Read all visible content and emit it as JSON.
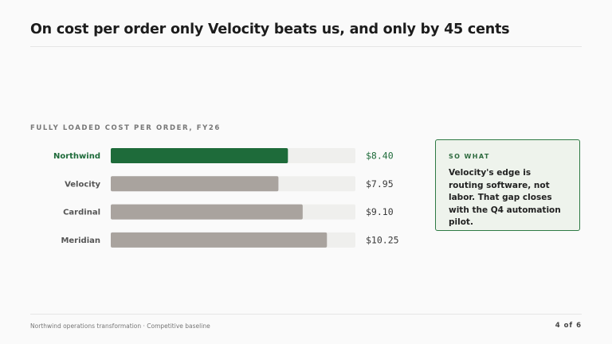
{
  "header": {
    "title": "On cost per order only Velocity beats us, and only by 45 cents"
  },
  "chart_data": {
    "type": "bar",
    "orientation": "horizontal",
    "title": "FULLY LOADED COST PER ORDER, FY26",
    "categories": [
      "Northwind",
      "Velocity",
      "Cardinal",
      "Meridian"
    ],
    "values": [
      8.4,
      7.95,
      9.1,
      10.25
    ],
    "value_labels": [
      "$8.40",
      "$7.95",
      "$9.10",
      "$10.25"
    ],
    "highlight": "Northwind",
    "xlim": [
      0,
      11.6
    ],
    "grid": false,
    "colors": {
      "highlight": "#1e6b3a",
      "default": "#a9a39e",
      "track": "#efefed"
    }
  },
  "callout": {
    "kicker": "SO WHAT",
    "body": "Velocity's edge is routing software, not labor. That gap closes with the Q4 automation pilot."
  },
  "footer": {
    "text": "Northwind operations transformation · Competitive baseline",
    "page": "4 of 6"
  }
}
